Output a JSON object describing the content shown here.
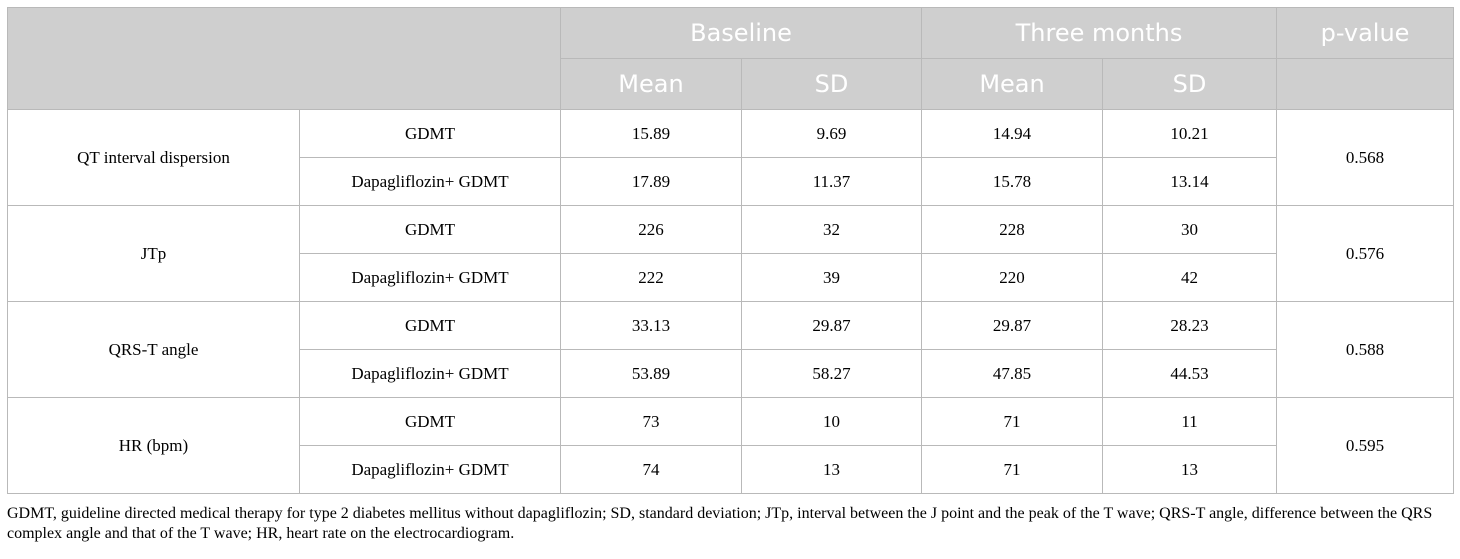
{
  "header": {
    "baseline": "Baseline",
    "three_months": "Three months",
    "p_value": "p-value",
    "mean": "Mean",
    "sd": "SD"
  },
  "rows": [
    {
      "measure": "QT interval dispersion",
      "p_value": "0.568",
      "groups": [
        {
          "group": "GDMT",
          "baseline_mean": "15.89",
          "baseline_sd": "9.69",
          "three_mean": "14.94",
          "three_sd": "10.21"
        },
        {
          "group": "Dapagliflozin+ GDMT",
          "baseline_mean": "17.89",
          "baseline_sd": "11.37",
          "three_mean": "15.78",
          "three_sd": "13.14"
        }
      ]
    },
    {
      "measure": "JTp",
      "p_value": "0.576",
      "groups": [
        {
          "group": "GDMT",
          "baseline_mean": "226",
          "baseline_sd": "32",
          "three_mean": "228",
          "three_sd": "30"
        },
        {
          "group": "Dapagliflozin+ GDMT",
          "baseline_mean": "222",
          "baseline_sd": "39",
          "three_mean": "220",
          "three_sd": "42"
        }
      ]
    },
    {
      "measure": "QRS-T angle",
      "p_value": "0.588",
      "groups": [
        {
          "group": "GDMT",
          "baseline_mean": "33.13",
          "baseline_sd": "29.87",
          "three_mean": "29.87",
          "three_sd": "28.23"
        },
        {
          "group": "Dapagliflozin+ GDMT",
          "baseline_mean": "53.89",
          "baseline_sd": "58.27",
          "three_mean": "47.85",
          "three_sd": "44.53"
        }
      ]
    },
    {
      "measure": "HR (bpm)",
      "p_value": "0.595",
      "groups": [
        {
          "group": "GDMT",
          "baseline_mean": "73",
          "baseline_sd": "10",
          "three_mean": "71",
          "three_sd": "11"
        },
        {
          "group": "Dapagliflozin+ GDMT",
          "baseline_mean": "74",
          "baseline_sd": "13",
          "three_mean": "71",
          "three_sd": "13"
        }
      ]
    }
  ],
  "footnote": "GDMT, guideline directed medical therapy for type 2 diabetes mellitus without dapagliflozin; SD, standard deviation; JTp, interval between the J point and the peak of the T wave; QRS-T angle, difference between the QRS complex angle and that of the T wave; HR, heart rate on the electrocardiogram."
}
